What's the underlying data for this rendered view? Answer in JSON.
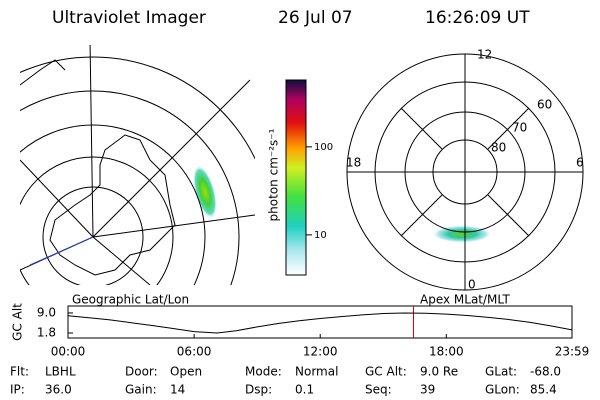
{
  "header": {
    "instrument": "Ultraviolet Imager",
    "date": "26 Jul 07",
    "time": "16:26:09 UT"
  },
  "colorbar": {
    "label": "photon cm⁻²s⁻¹",
    "log_scale": true,
    "clim": [
      3.5,
      575
    ],
    "ticks": [
      10,
      100
    ]
  },
  "geo_map": {
    "label": "Geographic Lat/Lon"
  },
  "polar_map": {
    "label": "Apex MLat/MLT",
    "mlt_labels": [
      "12",
      "18",
      "6",
      "0"
    ],
    "lat_labels": [
      "60",
      "70",
      "80"
    ]
  },
  "orbit": {
    "y_label": "GC Alt",
    "xlim": [
      0,
      23.98
    ],
    "ylim": [
      0,
      11.5
    ],
    "xticks": [
      {
        "value": 0,
        "label": "00:00"
      },
      {
        "value": 6,
        "label": "06:00"
      },
      {
        "value": 12,
        "label": "12:00"
      },
      {
        "value": 18,
        "label": "18:00"
      },
      {
        "value": 23.98,
        "label": "23:59"
      }
    ],
    "yticks": [
      {
        "value": 9,
        "label": "9.0"
      },
      1.8
    ],
    "x": [
      0,
      1,
      2,
      3,
      4,
      5,
      6,
      7.1,
      8,
      9,
      10,
      11,
      12,
      13,
      14,
      15,
      16,
      17,
      18,
      19,
      20,
      21,
      22,
      23,
      23.98
    ],
    "values": [
      8.0,
      7.3,
      6.5,
      5.5,
      4.5,
      3.4,
      2.3,
      1.8,
      2.6,
      4.0,
      5.2,
      6.2,
      7.0,
      7.7,
      8.3,
      8.8,
      9.0,
      8.9,
      8.6,
      8.1,
      7.4,
      6.6,
      5.6,
      4.3,
      2.9
    ],
    "current_time": 16.44,
    "current_color": "#d00000"
  },
  "footer": [
    {
      "label": "Flt:",
      "value": "LBHL"
    },
    {
      "label": "IP:",
      "value": "36.0"
    },
    {
      "label": "Door:",
      "value": "Open"
    },
    {
      "label": "Gain:",
      "value": "14"
    },
    {
      "label": "Mode:",
      "value": "Normal"
    },
    {
      "label": "Dsp:",
      "value": "0.1"
    },
    {
      "label": "GC Alt:",
      "value": "9.0 Re"
    },
    {
      "label": "Seq:",
      "value": "39"
    },
    {
      "label": "GLat:",
      "value": "-68.0"
    },
    {
      "label": "GLon:",
      "value": "85.4"
    }
  ]
}
